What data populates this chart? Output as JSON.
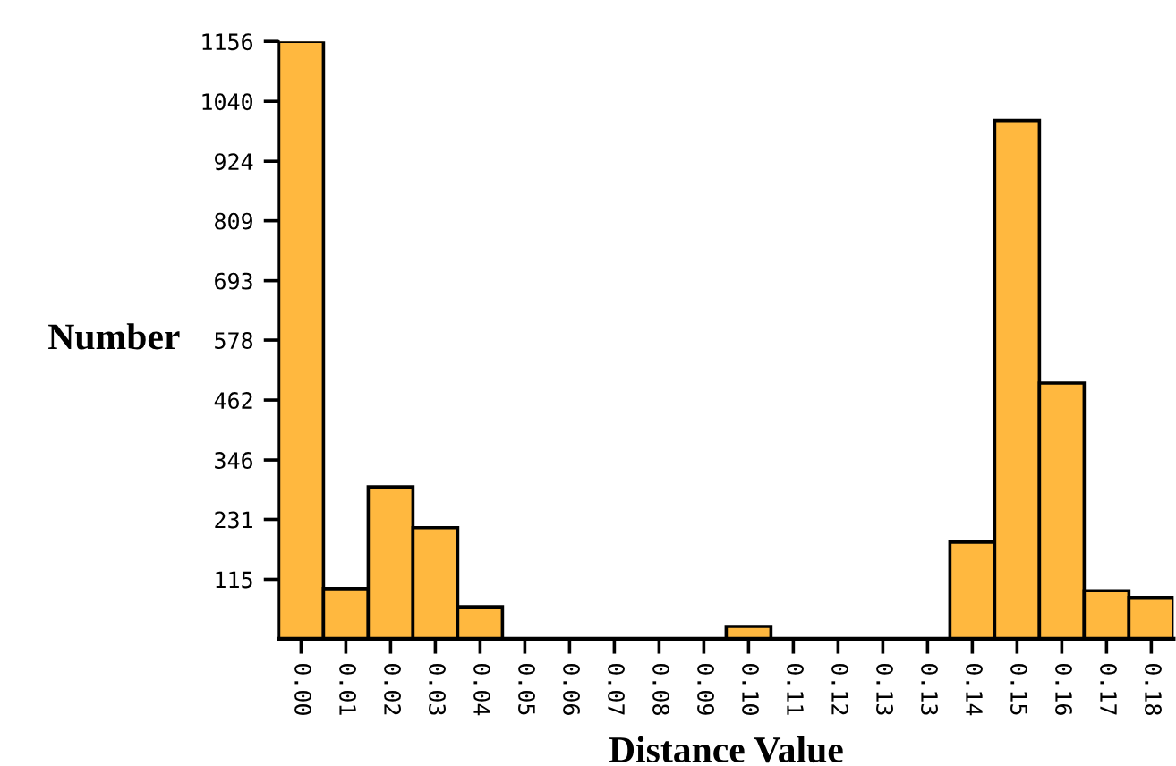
{
  "chart_data": {
    "type": "bar",
    "xlabel": "Distance Value",
    "ylabel": "Number",
    "categories": [
      "0.00",
      "0.01",
      "0.02",
      "0.03",
      "0.04",
      "0.05",
      "0.06",
      "0.07",
      "0.08",
      "0.09",
      "0.10",
      "0.11",
      "0.12",
      "0.13",
      "0.13",
      "0.14",
      "0.15",
      "0.16",
      "0.17",
      "0.18"
    ],
    "values": [
      1156,
      97,
      294,
      215,
      62,
      0,
      0,
      0,
      0,
      0,
      24,
      0,
      0,
      0,
      0,
      187,
      1003,
      495,
      93,
      80
    ],
    "color": "#ffb83f",
    "ylim": [
      0,
      1156
    ],
    "yticks": [
      115,
      231,
      346,
      462,
      578,
      693,
      809,
      924,
      1040,
      1156
    ],
    "grid": false,
    "legend": false
  }
}
